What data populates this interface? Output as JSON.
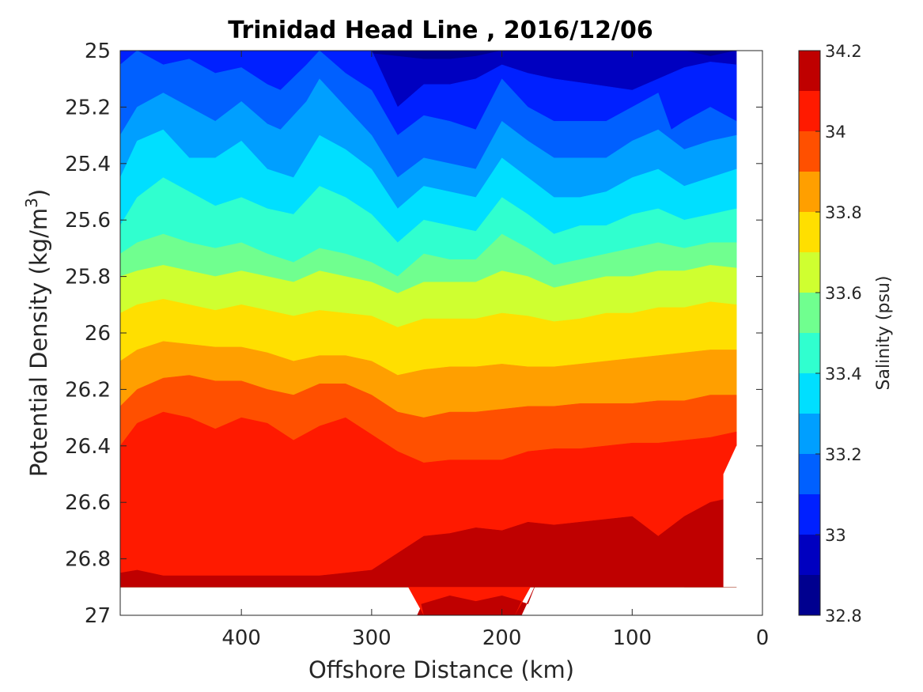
{
  "chart_data": {
    "type": "contour",
    "title": "Trinidad Head Line , 2016/12/06",
    "xlabel": "Offshore Distance (km)",
    "ylabel_prefix": "Potential Density (kg/m",
    "ylabel_sup": "3",
    "ylabel_suffix": ")",
    "colorbar_label": "Salinity (psu)",
    "x_reversed": true,
    "xlim": [
      0,
      493
    ],
    "ylim": [
      25,
      27
    ],
    "y_reversed": true,
    "x_ticks": [
      400,
      300,
      200,
      100,
      0
    ],
    "y_ticks": [
      25,
      25.2,
      25.4,
      25.6,
      25.8,
      26,
      26.2,
      26.4,
      26.6,
      26.8,
      27
    ],
    "y_tick_labels": [
      "25",
      "25.2",
      "25.4",
      "25.6",
      "25.8",
      "26",
      "26.2",
      "26.4",
      "26.6",
      "26.8",
      "27"
    ],
    "colorbar_ticks": [
      32.8,
      33,
      33.2,
      33.4,
      33.6,
      33.8,
      34,
      34.2
    ],
    "colorbar_tick_labels": [
      "32.8",
      "33",
      "33.2",
      "33.4",
      "33.6",
      "33.8",
      "34",
      "34.2"
    ],
    "levels": [
      32.8,
      32.9,
      33.0,
      33.1,
      33.2,
      33.3,
      33.4,
      33.5,
      33.6,
      33.7,
      33.8,
      33.9,
      34.0,
      34.1,
      34.2
    ],
    "level_colors": [
      "#00008f",
      "#0000c0",
      "#0020ff",
      "#0060ff",
      "#009fff",
      "#00dfff",
      "#30ffcf",
      "#70ff8f",
      "#cfff30",
      "#ffdf00",
      "#ff9f00",
      "#ff5000",
      "#ff1a00",
      "#bf0000"
    ],
    "data_extent": {
      "x_max": 493,
      "x_min": 20,
      "y_bottom": 26.9
    },
    "contour_boundaries": [
      {
        "level": 32.9,
        "x": [
          480,
          440,
          400,
          360,
          320,
          280,
          260,
          240,
          220,
          200,
          180,
          160,
          140,
          100,
          80,
          60,
          40,
          20
        ],
        "y": [
          25.0,
          25.0,
          25.0,
          25.0,
          25.0,
          25.02,
          25.03,
          25.03,
          25.02,
          25.0,
          25.0,
          25.0,
          25.0,
          25.0,
          25.0,
          25.0,
          25.02,
          25.0
        ]
      },
      {
        "level": 33.0,
        "x": [
          493,
          470,
          440,
          410,
          380,
          350,
          330,
          300,
          280,
          260,
          240,
          220,
          200,
          180,
          160,
          130,
          100,
          80,
          60,
          40,
          20
        ],
        "y": [
          25.0,
          25.0,
          25.0,
          25.0,
          25.0,
          25.0,
          25.0,
          25.0,
          25.2,
          25.12,
          25.12,
          25.1,
          25.05,
          25.08,
          25.1,
          25.12,
          25.14,
          25.1,
          25.06,
          25.04,
          25.05
        ]
      },
      {
        "level": 33.1,
        "x": [
          493,
          480,
          460,
          440,
          420,
          400,
          380,
          370,
          350,
          340,
          320,
          300,
          280,
          260,
          240,
          220,
          200,
          180,
          160,
          140,
          120,
          100,
          80,
          70,
          60,
          40,
          20
        ],
        "y": [
          25.05,
          25.0,
          25.05,
          25.03,
          25.08,
          25.06,
          25.12,
          25.14,
          25.05,
          25.0,
          25.08,
          25.14,
          25.3,
          25.23,
          25.25,
          25.28,
          25.1,
          25.2,
          25.25,
          25.25,
          25.25,
          25.2,
          25.15,
          25.28,
          25.25,
          25.2,
          25.25
        ]
      },
      {
        "level": 33.2,
        "x": [
          493,
          480,
          460,
          440,
          420,
          400,
          380,
          370,
          350,
          340,
          320,
          300,
          280,
          260,
          240,
          220,
          200,
          180,
          160,
          140,
          120,
          100,
          80,
          60,
          40,
          20
        ],
        "y": [
          25.3,
          25.2,
          25.15,
          25.2,
          25.25,
          25.18,
          25.26,
          25.28,
          25.18,
          25.1,
          25.2,
          25.3,
          25.45,
          25.38,
          25.4,
          25.42,
          25.25,
          25.32,
          25.38,
          25.38,
          25.38,
          25.32,
          25.28,
          25.35,
          25.32,
          25.3
        ]
      },
      {
        "level": 33.3,
        "x": [
          493,
          480,
          460,
          440,
          420,
          400,
          380,
          360,
          340,
          320,
          300,
          280,
          260,
          240,
          220,
          200,
          180,
          160,
          140,
          120,
          100,
          80,
          60,
          40,
          20
        ],
        "y": [
          25.45,
          25.32,
          25.28,
          25.38,
          25.38,
          25.32,
          25.42,
          25.45,
          25.3,
          25.35,
          25.42,
          25.56,
          25.48,
          25.5,
          25.52,
          25.38,
          25.45,
          25.52,
          25.52,
          25.5,
          25.45,
          25.42,
          25.48,
          25.45,
          25.42
        ]
      },
      {
        "level": 33.4,
        "x": [
          493,
          480,
          460,
          440,
          420,
          400,
          380,
          360,
          340,
          320,
          300,
          280,
          260,
          240,
          220,
          200,
          180,
          160,
          140,
          120,
          100,
          80,
          60,
          40,
          20
        ],
        "y": [
          25.62,
          25.52,
          25.45,
          25.5,
          25.55,
          25.52,
          25.56,
          25.58,
          25.48,
          25.52,
          25.58,
          25.68,
          25.6,
          25.62,
          25.64,
          25.52,
          25.58,
          25.65,
          25.62,
          25.62,
          25.58,
          25.56,
          25.6,
          25.58,
          25.56
        ]
      },
      {
        "level": 33.5,
        "x": [
          493,
          480,
          460,
          440,
          420,
          400,
          380,
          360,
          340,
          320,
          300,
          280,
          260,
          240,
          220,
          200,
          180,
          160,
          140,
          120,
          100,
          80,
          60,
          40,
          20
        ],
        "y": [
          25.72,
          25.68,
          25.65,
          25.68,
          25.7,
          25.68,
          25.72,
          25.75,
          25.7,
          25.72,
          25.75,
          25.8,
          25.72,
          25.74,
          25.74,
          25.65,
          25.7,
          25.76,
          25.74,
          25.72,
          25.7,
          25.68,
          25.7,
          25.68,
          25.68
        ]
      },
      {
        "level": 33.6,
        "x": [
          493,
          480,
          460,
          440,
          420,
          400,
          380,
          360,
          340,
          320,
          300,
          280,
          260,
          240,
          220,
          200,
          180,
          160,
          140,
          120,
          100,
          80,
          60,
          40,
          20
        ],
        "y": [
          25.8,
          25.78,
          25.76,
          25.78,
          25.8,
          25.78,
          25.8,
          25.82,
          25.78,
          25.8,
          25.82,
          25.86,
          25.82,
          25.82,
          25.82,
          25.78,
          25.8,
          25.84,
          25.82,
          25.8,
          25.8,
          25.78,
          25.78,
          25.76,
          25.77
        ]
      },
      {
        "level": 33.7,
        "x": [
          493,
          480,
          460,
          440,
          420,
          400,
          380,
          360,
          340,
          320,
          300,
          280,
          260,
          240,
          220,
          200,
          180,
          160,
          140,
          120,
          100,
          80,
          60,
          40,
          20
        ],
        "y": [
          25.93,
          25.9,
          25.88,
          25.9,
          25.92,
          25.9,
          25.92,
          25.94,
          25.92,
          25.93,
          25.94,
          25.98,
          25.95,
          25.95,
          25.95,
          25.93,
          25.94,
          25.96,
          25.95,
          25.93,
          25.93,
          25.91,
          25.91,
          25.89,
          25.9
        ]
      },
      {
        "level": 33.8,
        "x": [
          493,
          480,
          460,
          440,
          420,
          400,
          380,
          360,
          340,
          320,
          300,
          280,
          260,
          240,
          220,
          200,
          180,
          160,
          140,
          120,
          100,
          80,
          60,
          40,
          20
        ],
        "y": [
          26.1,
          26.06,
          26.03,
          26.04,
          26.05,
          26.05,
          26.07,
          26.1,
          26.08,
          26.08,
          26.1,
          26.15,
          26.13,
          26.12,
          26.12,
          26.11,
          26.12,
          26.12,
          26.11,
          26.1,
          26.09,
          26.08,
          26.07,
          26.06,
          26.06
        ]
      },
      {
        "level": 33.9,
        "x": [
          493,
          480,
          460,
          440,
          420,
          400,
          380,
          360,
          340,
          320,
          300,
          280,
          260,
          240,
          220,
          200,
          180,
          160,
          140,
          120,
          100,
          80,
          60,
          40,
          20
        ],
        "y": [
          26.26,
          26.2,
          26.16,
          26.15,
          26.17,
          26.17,
          26.2,
          26.22,
          26.18,
          26.18,
          26.22,
          26.28,
          26.3,
          26.28,
          26.28,
          26.27,
          26.26,
          26.26,
          26.25,
          26.25,
          26.25,
          26.24,
          26.24,
          26.22,
          26.22
        ]
      },
      {
        "level": 34.0,
        "x": [
          493,
          480,
          460,
          440,
          420,
          400,
          380,
          360,
          340,
          320,
          300,
          280,
          260,
          240,
          220,
          200,
          180,
          160,
          140,
          120,
          100,
          80,
          60,
          40,
          20
        ],
        "y": [
          26.4,
          26.32,
          26.28,
          26.3,
          26.34,
          26.3,
          26.32,
          26.38,
          26.33,
          26.3,
          26.36,
          26.42,
          26.46,
          26.45,
          26.45,
          26.45,
          26.42,
          26.41,
          26.41,
          26.4,
          26.39,
          26.39,
          26.38,
          26.37,
          26.35
        ]
      },
      {
        "level": 34.1,
        "x": [
          493,
          480,
          460,
          440,
          420,
          400,
          380,
          360,
          340,
          320,
          300,
          280,
          260,
          240,
          220,
          200,
          180,
          160,
          140,
          120,
          100,
          80,
          60,
          40,
          20
        ],
        "y": [
          26.85,
          26.84,
          26.86,
          26.86,
          26.86,
          26.86,
          26.86,
          26.86,
          26.86,
          26.85,
          26.84,
          26.78,
          26.72,
          26.71,
          26.69,
          26.7,
          26.67,
          26.68,
          26.67,
          26.66,
          26.65,
          26.72,
          26.65,
          26.6,
          26.58
        ]
      },
      {
        "level": 34.2,
        "x": [
          260,
          240,
          220,
          200,
          180,
          60,
          40,
          20
        ],
        "y": [
          26.95,
          26.93,
          26.94,
          26.93,
          26.96,
          26.9,
          26.85,
          26.83
        ]
      }
    ]
  }
}
